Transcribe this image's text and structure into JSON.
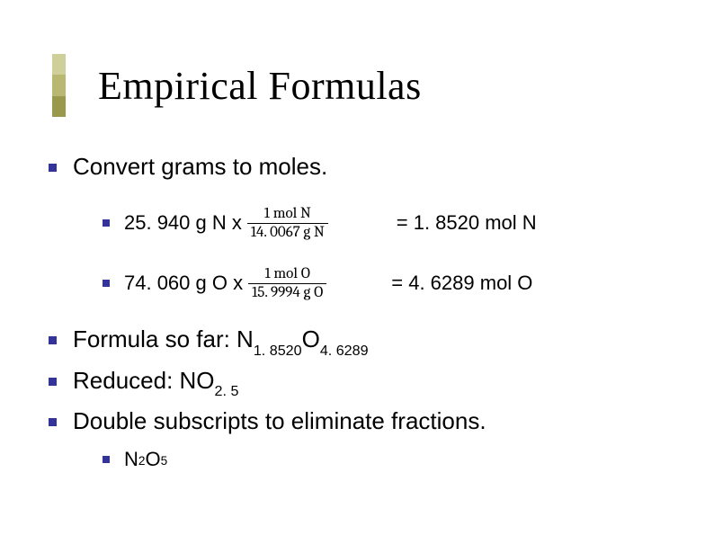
{
  "colors": {
    "bullet": "#333399",
    "title_bar": [
      "#cfcf99",
      "#b8b873",
      "#99994d"
    ],
    "background": "#ffffff",
    "text": "#000000"
  },
  "typography": {
    "title_font": "Times New Roman",
    "title_size_pt": 44,
    "body_font": "Verdana",
    "body_size_pt": 26,
    "sub_size_pt": 22
  },
  "title": "Empirical Formulas",
  "main_bullet": "Convert grams to moles.",
  "calcs": [
    {
      "lhs": "25. 940 g N x",
      "frac_num": "1 mol N",
      "frac_den": "14. 0067 g N",
      "rhs": "= 1. 8520 mol N"
    },
    {
      "lhs": "74. 060 g O x",
      "frac_num": "1 mol O",
      "frac_den": "15. 9994 g O",
      "rhs": "= 4. 6289 mol O"
    }
  ],
  "formula_prefix": "Formula so far: N",
  "formula_sub1": "1. 8520",
  "formula_mid": "O",
  "formula_sub2": "4. 6289",
  "reduced_prefix": "Reduced: NO",
  "reduced_sub": "2. 5",
  "double_line": "Double subscripts to eliminate fractions.",
  "final_prefix": "N",
  "final_sub1": "2",
  "final_mid": "O",
  "final_sub2": "5"
}
